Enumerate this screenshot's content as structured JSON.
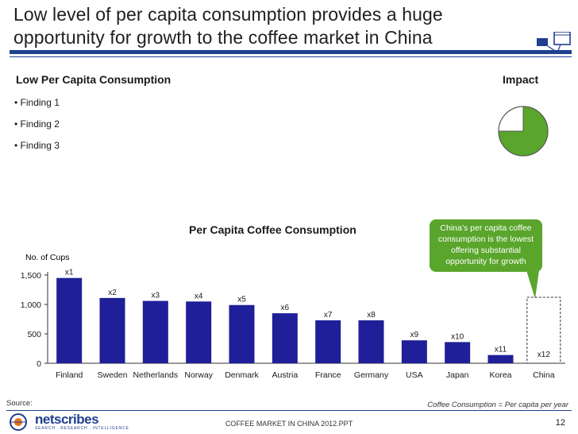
{
  "title": "Low level of per capita consumption provides a huge opportunity for growth to the coffee market in China",
  "left_section": {
    "heading": "Low Per Capita Consumption",
    "findings": [
      "• Finding 1",
      "• Finding 2",
      "• Finding 3"
    ]
  },
  "right_section": {
    "heading": "Impact",
    "impact_fraction": 0.75
  },
  "callout": "China’s per capita coffee consumption is the lowest offering substantial opportunity for growth",
  "chart_data": {
    "type": "bar",
    "title": "Per Capita Coffee Consumption",
    "ylabel": "No. of  Cups",
    "xlabel": "",
    "categories": [
      "Finland",
      "Sweden",
      "Netherlands",
      "Norway",
      "Denmark",
      "Austria",
      "France",
      "Germany",
      "USA",
      "Japan",
      "Korea",
      "China"
    ],
    "values": [
      1450,
      1110,
      1060,
      1050,
      990,
      850,
      730,
      730,
      390,
      360,
      140,
      0
    ],
    "data_labels": [
      "x1",
      "x2",
      "x3",
      "x4",
      "x5",
      "x6",
      "x7",
      "x8",
      "x9",
      "x10",
      "x11",
      "x12"
    ],
    "ylim": [
      0,
      1500
    ],
    "yticks": [
      0,
      500,
      1000,
      1500
    ],
    "ytick_labels": [
      "0",
      "500",
      "1,000",
      "1,500"
    ],
    "highlight_category": "China",
    "bar_color": "#1f1f99",
    "highlight_color": "#5aa52c"
  },
  "footer": {
    "source": "Source:",
    "footnote": "Coffee Consumption = Per capita per year",
    "logo": "netscribes",
    "logo_tagline": "SEARCH  .  RESEARCH  .  INTELLIGENCE",
    "file_name": "COFFEE MARKET IN CHINA 2012.PPT",
    "page": "12"
  }
}
